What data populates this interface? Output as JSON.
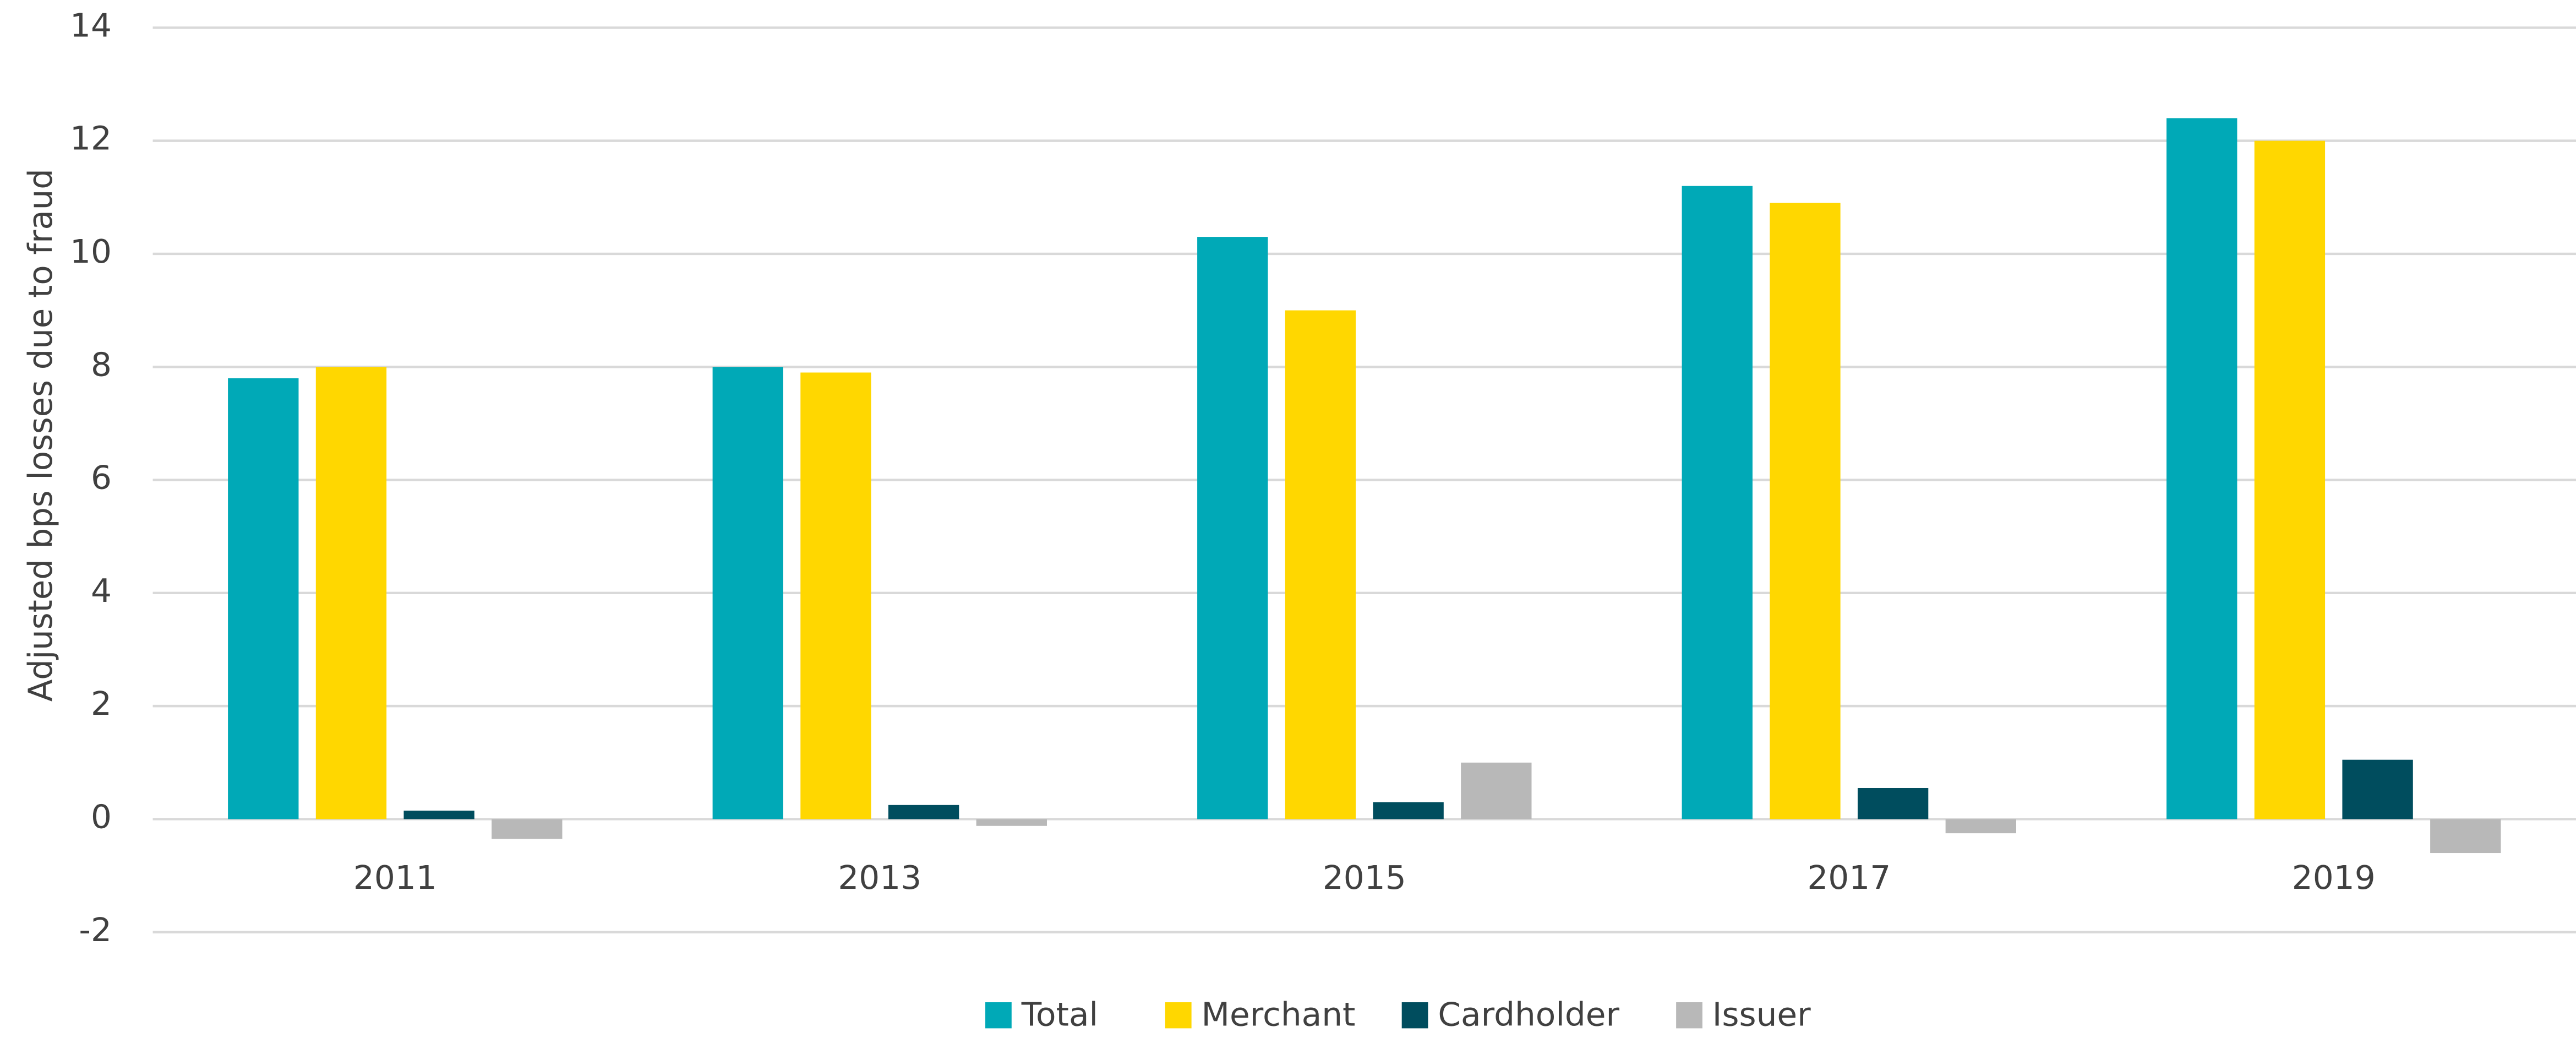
{
  "chart_data": {
    "type": "bar",
    "y_label": "Adjusted bps losses due to fraud",
    "categories": [
      "2011",
      "2013",
      "2015",
      "2017",
      "2019"
    ],
    "series": [
      {
        "name": "Total",
        "color": "#00a9b7",
        "values": [
          7.8,
          8.0,
          10.3,
          11.2,
          12.4
        ]
      },
      {
        "name": "Merchant",
        "color": "#ffd700",
        "values": [
          8.0,
          7.9,
          9.0,
          10.9,
          12.0
        ]
      },
      {
        "name": "Cardholder",
        "color": "#004d5e",
        "values": [
          0.15,
          0.25,
          0.3,
          0.55,
          1.05
        ]
      },
      {
        "name": "Issuer",
        "color": "#b8b8b8",
        "values": [
          -0.35,
          -0.12,
          1.0,
          -0.25,
          -0.6
        ]
      }
    ],
    "ylim": [
      -2,
      14
    ],
    "yticks": [
      -2,
      0,
      2,
      4,
      6,
      8,
      10,
      12,
      14
    ],
    "grid": true,
    "legend": "bottom"
  }
}
